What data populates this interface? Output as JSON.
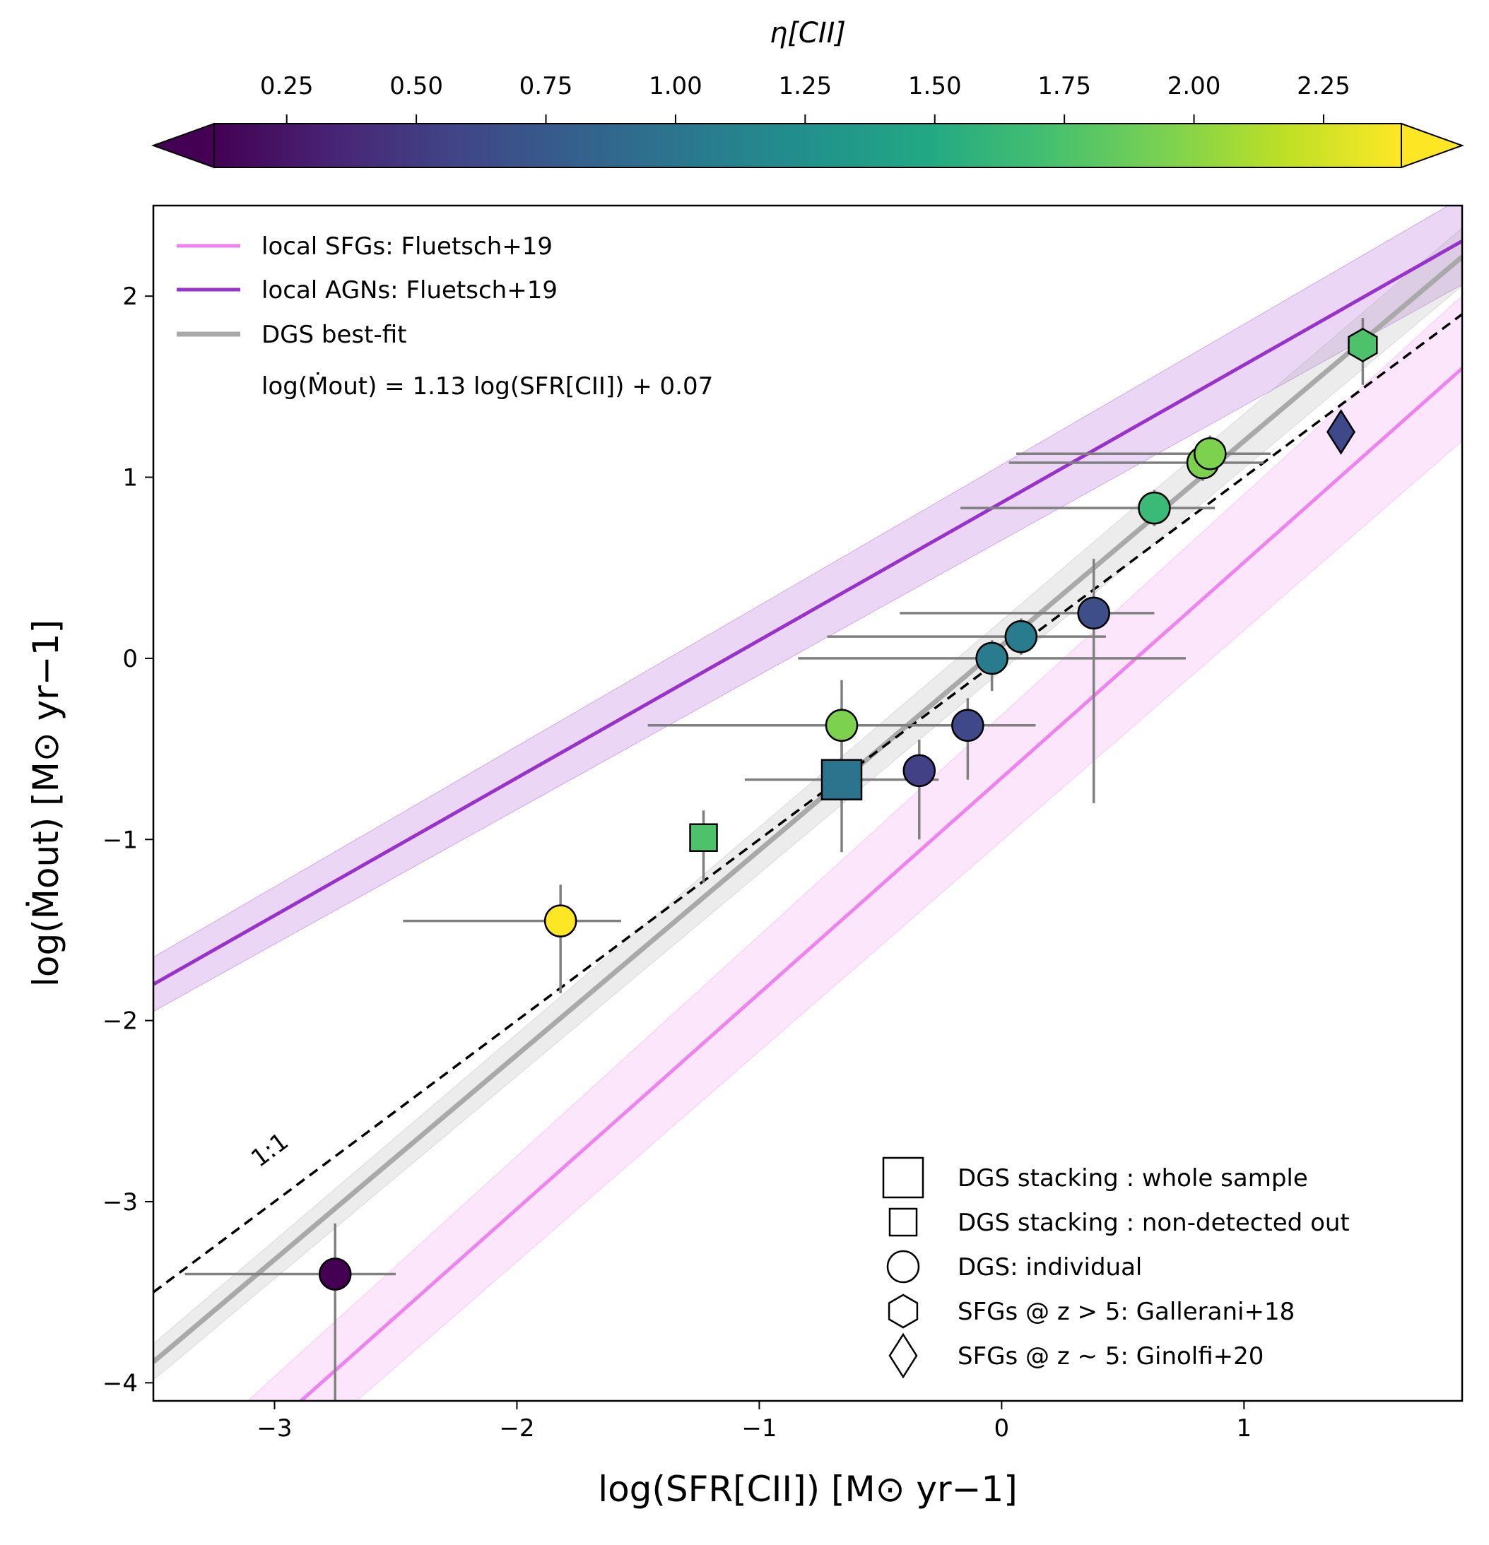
{
  "chart_data": {
    "type": "scatter",
    "x_min": -3.5,
    "x_max": 1.9,
    "y_min": -4.1,
    "y_max": 2.5,
    "xticks": [
      -3,
      -2,
      -1,
      0,
      1
    ],
    "yticks": [
      -4,
      -3,
      -2,
      -1,
      0,
      1,
      2
    ],
    "xtick_labels": [
      "−3",
      "−2",
      "−1",
      "0",
      "1"
    ],
    "ytick_labels": [
      "−4",
      "−3",
      "−2",
      "−1",
      "0",
      "1",
      "2"
    ],
    "xlabel": "log(SFR[CII]) [M⊙ yr−1]",
    "ylabel": "log(Ṁout) [M⊙ yr−1]",
    "colorbar": {
      "label": "η[CII]",
      "min": 0.11,
      "max": 2.4,
      "ticks": [
        0.25,
        0.5,
        0.75,
        1.0,
        1.25,
        1.5,
        1.75,
        2.0,
        2.25
      ],
      "tick_labels": [
        "0.25",
        "0.50",
        "0.75",
        "1.00",
        "1.25",
        "1.50",
        "1.75",
        "2.00",
        "2.25"
      ],
      "colormap": "viridis",
      "extend": "both"
    },
    "lines": [
      {
        "name": "local SFGs: Fluetsch+19",
        "color": "#ee82ee",
        "slope": 1.19,
        "intercept": -0.66,
        "band": 0.25
      },
      {
        "name": "local AGNs: Fluetsch+19",
        "color": "#9932cc",
        "slope": 0.76,
        "intercept": 0.86,
        "band": 0.15
      },
      {
        "name": "DGS best-fit",
        "color": "#a9a9a9",
        "slope": 1.13,
        "intercept": 0.07,
        "band": 0.1
      },
      {
        "name": "1:1",
        "color": "#000000",
        "slope": 1.0,
        "intercept": 0.0
      }
    ],
    "fit_equation": "log(Ṁout) = 1.13 log(SFR[CII]) + 0.07",
    "one_to_one_label": "1:1",
    "points": [
      {
        "x": -2.75,
        "y": -3.4,
        "xerr": [
          0.62,
          0.25
        ],
        "yerr": [
          0.75,
          0.28
        ],
        "eta": 0.11,
        "marker": "circle"
      },
      {
        "x": -1.82,
        "y": -1.45,
        "xerr": [
          0.65,
          0.25
        ],
        "yerr": [
          0.4,
          0.2
        ],
        "eta": 2.4,
        "marker": "circle"
      },
      {
        "x": -1.23,
        "y": -0.99,
        "xerr": [
          0,
          0
        ],
        "yerr": [
          0.25,
          0.15
        ],
        "eta": 1.75,
        "marker": "square"
      },
      {
        "x": -0.66,
        "y": -0.67,
        "xerr": [
          0.4,
          0.4
        ],
        "yerr": [
          0.4,
          0.4
        ],
        "eta": 0.98,
        "marker": "big-square"
      },
      {
        "x": -0.66,
        "y": -0.37,
        "xerr": [
          0.8,
          0.8
        ],
        "yerr": [
          0.27,
          0.25
        ],
        "eta": 1.95,
        "marker": "circle"
      },
      {
        "x": -0.34,
        "y": -0.62,
        "xerr": [
          0,
          0
        ],
        "yerr": [
          0.38,
          0.17
        ],
        "eta": 0.55,
        "marker": "circle"
      },
      {
        "x": -0.14,
        "y": -0.37,
        "xerr": [
          0,
          0
        ],
        "yerr": [
          0.3,
          0.15
        ],
        "eta": 0.6,
        "marker": "circle"
      },
      {
        "x": -0.04,
        "y": 0.0,
        "xerr": [
          0.8,
          0.8
        ],
        "yerr": [
          0.18,
          0.1
        ],
        "eta": 1.05,
        "marker": "circle"
      },
      {
        "x": 0.08,
        "y": 0.12,
        "xerr": [
          0.8,
          0.35
        ],
        "yerr": [
          0.1,
          0.1
        ],
        "eta": 1.05,
        "marker": "circle"
      },
      {
        "x": 0.38,
        "y": 0.25,
        "xerr": [
          0.8,
          0.25
        ],
        "yerr": [
          1.05,
          0.3
        ],
        "eta": 0.65,
        "marker": "circle"
      },
      {
        "x": 0.63,
        "y": 0.83,
        "xerr": [
          0.8,
          0.25
        ],
        "yerr": [
          0.1,
          0.1
        ],
        "eta": 1.65,
        "marker": "circle"
      },
      {
        "x": 0.83,
        "y": 1.08,
        "xerr": [
          0.8,
          0.25
        ],
        "yerr": [
          0.1,
          0.1
        ],
        "eta": 1.95,
        "marker": "circle"
      },
      {
        "x": 0.86,
        "y": 1.13,
        "xerr": [
          0.8,
          0.25
        ],
        "yerr": [
          0.1,
          0.1
        ],
        "eta": 1.95,
        "marker": "circle"
      },
      {
        "x": 1.49,
        "y": 1.73,
        "xerr": [
          0,
          0
        ],
        "yerr": [
          0.22,
          0.15
        ],
        "eta": 1.75,
        "marker": "hexagon"
      },
      {
        "x": 1.4,
        "y": 1.25,
        "xerr": [
          0,
          0
        ],
        "yerr": [
          0,
          0
        ],
        "eta": 0.6,
        "marker": "diamond"
      }
    ],
    "marker_legend": [
      {
        "marker": "big-square",
        "label": "DGS stacking : whole sample"
      },
      {
        "marker": "square",
        "label": "DGS stacking : non-detected out"
      },
      {
        "marker": "circle",
        "label": "DGS: individual"
      },
      {
        "marker": "hexagon",
        "label": "SFGs @ z > 5: Gallerani+18"
      },
      {
        "marker": "diamond",
        "label": "SFGs @ z ∼ 5: Ginolfi+20"
      }
    ]
  }
}
